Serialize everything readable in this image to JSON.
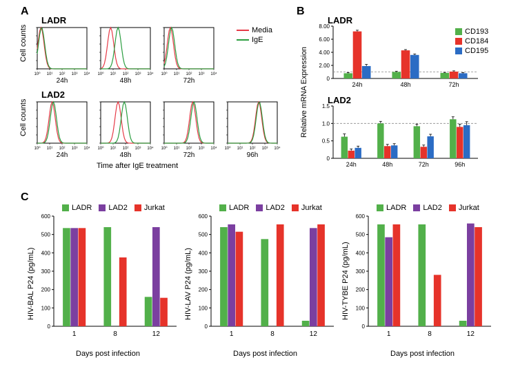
{
  "colors": {
    "media": "#e63946",
    "ige": "#2a9d3f",
    "cd193": "#52b04a",
    "cd184": "#e6332a",
    "cd195": "#2b6cc4",
    "ladr": "#52b04a",
    "lad2": "#7b3fa0",
    "jurkat": "#e6332a",
    "axis": "#000000",
    "grid": "#e0e0e0",
    "dashed": "#888888"
  },
  "panelA": {
    "label": "A",
    "ladr": {
      "title": "LADR",
      "timepoints": [
        "24h",
        "48h",
        "72h"
      ]
    },
    "lad2": {
      "title": "LAD2",
      "timepoints": [
        "24h",
        "48h",
        "72h",
        "96h"
      ]
    },
    "ylabel": "Cell counts",
    "xlabel": "Time after IgE treatment",
    "legend": [
      {
        "label": "Media",
        "color_key": "media"
      },
      {
        "label": "IgE",
        "color_key": "ige"
      }
    ],
    "hist_ymax": 100,
    "hist_yticks": [
      0,
      20,
      40,
      60,
      80,
      100
    ],
    "xTickLabels": [
      "10⁰",
      "10¹",
      "10²",
      "10³",
      "10⁴"
    ]
  },
  "panelB": {
    "label": "B",
    "ylabel": "Relative mRNA Expression",
    "ladr": {
      "title": "LADR",
      "ylim": [
        0,
        8
      ],
      "ytick_step": 2,
      "yticks": [
        "0",
        "2.00",
        "4.00",
        "6.00",
        "8.00"
      ],
      "timepoints": [
        "24h",
        "48h",
        "72h"
      ],
      "dashed_at": 1.0,
      "data": {
        "24h": {
          "CD193": 0.8,
          "CD184": 7.2,
          "CD195": 1.9
        },
        "48h": {
          "CD193": 1.0,
          "CD184": 4.3,
          "CD195": 3.6
        },
        "72h": {
          "CD193": 0.85,
          "CD184": 1.05,
          "CD195": 0.8
        }
      },
      "errors": {
        "24h": {
          "CD193": 0.1,
          "CD184": 0.18,
          "CD195": 0.25
        },
        "48h": {
          "CD193": 0.1,
          "CD184": 0.12,
          "CD195": 0.15
        },
        "72h": {
          "CD193": 0.08,
          "CD184": 0.12,
          "CD195": 0.1
        }
      }
    },
    "lad2": {
      "title": "LAD2",
      "ylim": [
        0,
        1.5
      ],
      "ytick_step": 0.5,
      "yticks": [
        "0",
        "0.5",
        "1.0",
        "1.5"
      ],
      "timepoints": [
        "24h",
        "48h",
        "72h",
        "96h"
      ],
      "dashed_at": 1.0,
      "data": {
        "24h": {
          "CD193": 0.62,
          "CD184": 0.22,
          "CD195": 0.3
        },
        "48h": {
          "CD193": 1.0,
          "CD184": 0.35,
          "CD195": 0.37
        },
        "72h": {
          "CD193": 0.92,
          "CD184": 0.33,
          "CD195": 0.63
        },
        "96h": {
          "CD193": 1.12,
          "CD184": 0.9,
          "CD195": 0.95
        }
      },
      "errors": {
        "24h": {
          "CD193": 0.08,
          "CD184": 0.05,
          "CD195": 0.05
        },
        "48h": {
          "CD193": 0.06,
          "CD184": 0.05,
          "CD195": 0.05
        },
        "72h": {
          "CD193": 0.06,
          "CD184": 0.05,
          "CD195": 0.06
        },
        "96h": {
          "CD193": 0.07,
          "CD184": 0.08,
          "CD195": 0.1
        }
      }
    },
    "legend": [
      {
        "label": "CD193",
        "color_key": "cd193"
      },
      {
        "label": "CD184",
        "color_key": "cd184"
      },
      {
        "label": "CD195",
        "color_key": "cd195"
      }
    ]
  },
  "panelC": {
    "label": "C",
    "xlabel": "Days post infection",
    "days": [
      "1",
      "8",
      "12"
    ],
    "ylim": [
      0,
      600
    ],
    "ytick_step": 100,
    "legend": [
      {
        "label": "LADR",
        "color_key": "ladr"
      },
      {
        "label": "LAD2",
        "color_key": "lad2"
      },
      {
        "label": "Jurkat",
        "color_key": "jurkat"
      }
    ],
    "charts": [
      {
        "ylabel": "HIV-BAL P24 (pg/mL)",
        "data": {
          "1": {
            "LADR": 535,
            "LAD2": 535,
            "Jurkat": 535
          },
          "8": {
            "LADR": 540,
            "LAD2": 0,
            "Jurkat": 375
          },
          "12": {
            "LADR": 160,
            "LAD2": 540,
            "Jurkat": 155
          }
        }
      },
      {
        "ylabel": "HIV-LAV P24 (pg/mL)",
        "data": {
          "1": {
            "LADR": 540,
            "LAD2": 555,
            "Jurkat": 515
          },
          "8": {
            "LADR": 475,
            "LAD2": 0,
            "Jurkat": 555
          },
          "12": {
            "LADR": 30,
            "LAD2": 535,
            "Jurkat": 555
          }
        }
      },
      {
        "ylabel": "HIV-TYBE P24 (pg/mL)",
        "data": {
          "1": {
            "LADR": 555,
            "LAD2": 485,
            "Jurkat": 555
          },
          "8": {
            "LADR": 555,
            "LAD2": 0,
            "Jurkat": 280
          },
          "12": {
            "LADR": 30,
            "LAD2": 560,
            "Jurkat": 540
          }
        }
      }
    ]
  },
  "fontsize": {
    "panel_label": 16,
    "title": 13,
    "axis": 11,
    "tick": 8
  }
}
